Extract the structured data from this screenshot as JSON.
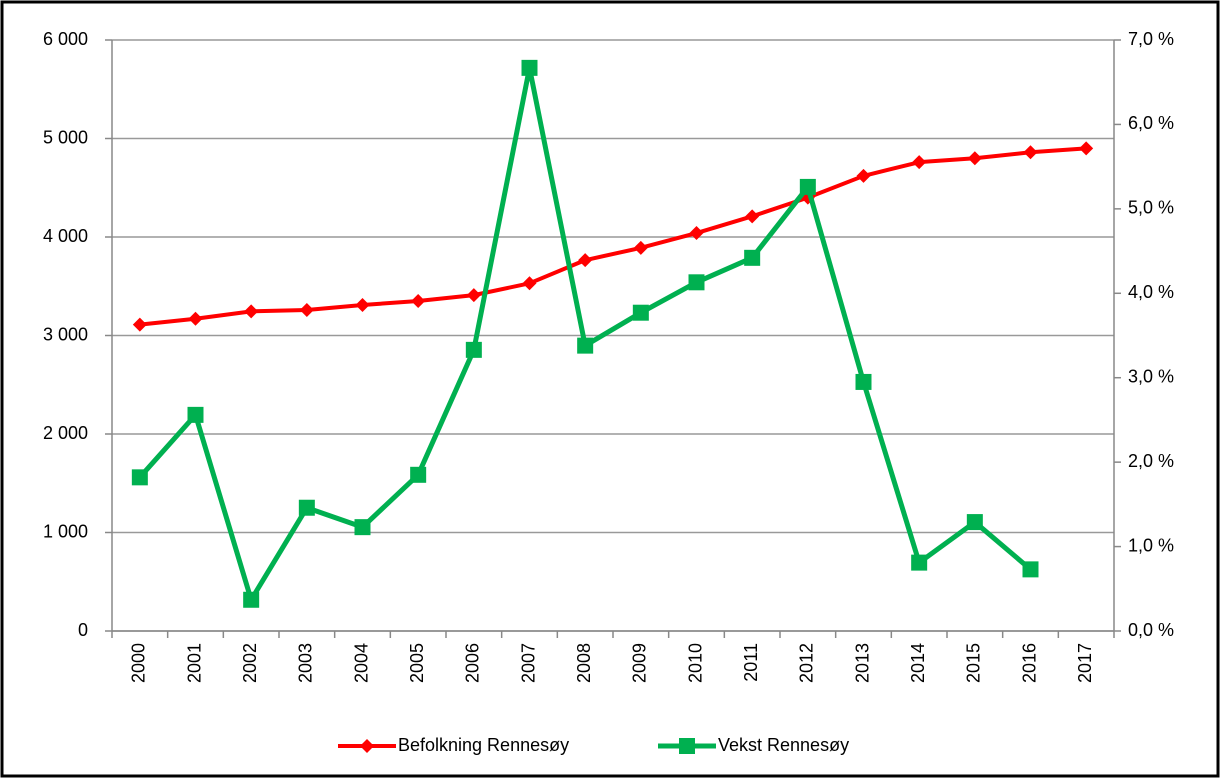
{
  "chart_data": {
    "type": "line",
    "categories": [
      "2000",
      "2001",
      "2002",
      "2003",
      "2004",
      "2005",
      "2006",
      "2007",
      "2008",
      "2009",
      "2010",
      "2011",
      "2012",
      "2013",
      "2014",
      "2015",
      "2016",
      "2017"
    ],
    "series": [
      {
        "name": "Befolkning Rennesøy",
        "color": "#ff0000",
        "marker": "diamond",
        "values": [
          3110,
          3170,
          3245,
          3259,
          3310,
          3350,
          3410,
          3530,
          3765,
          3890,
          4040,
          4210,
          4400,
          4620,
          4760,
          4800,
          4860,
          4900
        ]
      },
      {
        "name": "Vekst Rennesøy",
        "color": "#00b050",
        "marker": "square",
        "axis": "y2",
        "values": [
          1.82,
          2.56,
          0.37,
          1.46,
          1.23,
          1.85,
          3.33,
          6.67,
          3.38,
          3.77,
          4.13,
          4.42,
          5.26,
          2.95,
          0.81,
          1.29,
          0.73,
          null
        ]
      }
    ],
    "ylim": [
      0,
      6000
    ],
    "yticks": [
      0,
      {
        "value": 1000,
        "label": "1 000"
      },
      {
        "value": 2000,
        "label": "2 000"
      },
      {
        "value": 3000,
        "label": "3 000"
      },
      {
        "value": 4000,
        "label": "4 000"
      },
      {
        "value": 5000,
        "label": "5 000"
      },
      {
        "value": 6000,
        "label": "6 000"
      }
    ],
    "y2lim": [
      0,
      7
    ],
    "y2ticks": [
      {
        "value": 0,
        "label": "0,0 %"
      },
      {
        "value": 1,
        "label": "1,0 %"
      },
      {
        "value": 2,
        "label": "2,0 %"
      },
      {
        "value": 3,
        "label": "3,0 %"
      },
      {
        "value": 4,
        "label": "4,0 %"
      },
      {
        "value": 5,
        "label": "5,0 %"
      },
      {
        "value": 6,
        "label": "6,0 %"
      },
      {
        "value": 7,
        "label": "7,0 %"
      }
    ],
    "grid": true,
    "legend": "bottom"
  }
}
